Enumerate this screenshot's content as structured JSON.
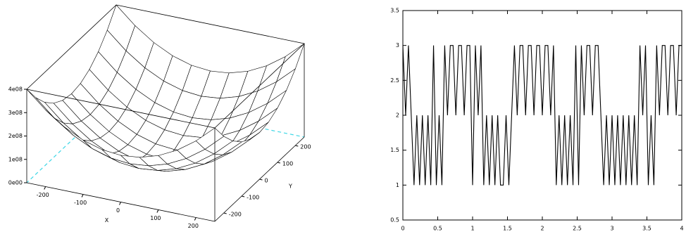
{
  "chart_data": [
    {
      "type": "surface",
      "xlabel": "X",
      "ylabel": "Y",
      "x": [
        -250,
        -200,
        -150,
        -100,
        -50,
        0,
        50,
        100,
        150,
        200,
        250
      ],
      "y": [
        -250,
        -200,
        -150,
        -100,
        -50,
        0,
        50,
        100,
        150,
        200,
        250
      ],
      "z": [
        [
          400000000.0,
          328000000.0,
          272000000.0,
          232000000.0,
          208000000.0,
          200000000.0,
          208000000.0,
          232000000.0,
          272000000.0,
          328000000.0,
          400000000.0
        ],
        [
          328000000.0,
          256000000.0,
          200000000.0,
          160000000.0,
          136000000.0,
          128000000.0,
          136000000.0,
          160000000.0,
          200000000.0,
          256000000.0,
          328000000.0
        ],
        [
          272000000.0,
          200000000.0,
          144000000.0,
          104000000.0,
          80000000.0,
          72000000.0,
          80000000.0,
          104000000.0,
          144000000.0,
          200000000.0,
          272000000.0
        ],
        [
          232000000.0,
          160000000.0,
          104000000.0,
          64000000.0,
          40000000.0,
          32000000.0,
          40000000.0,
          64000000.0,
          104000000.0,
          160000000.0,
          232000000.0
        ],
        [
          208000000.0,
          136000000.0,
          80000000.0,
          40000000.0,
          16000000.0,
          8000000.0,
          16000000.0,
          40000000.0,
          80000000.0,
          136000000.0,
          208000000.0
        ],
        [
          200000000.0,
          128000000.0,
          72000000.0,
          32000000.0,
          8000000.0,
          0,
          8000000.0,
          32000000.0,
          72000000.0,
          128000000.0,
          200000000.0
        ],
        [
          208000000.0,
          136000000.0,
          80000000.0,
          40000000.0,
          16000000.0,
          8000000.0,
          16000000.0,
          40000000.0,
          80000000.0,
          136000000.0,
          208000000.0
        ],
        [
          232000000.0,
          160000000.0,
          104000000.0,
          64000000.0,
          40000000.0,
          32000000.0,
          40000000.0,
          64000000.0,
          104000000.0,
          160000000.0,
          232000000.0
        ],
        [
          272000000.0,
          200000000.0,
          144000000.0,
          104000000.0,
          80000000.0,
          72000000.0,
          80000000.0,
          104000000.0,
          144000000.0,
          200000000.0,
          272000000.0
        ],
        [
          328000000.0,
          256000000.0,
          200000000.0,
          160000000.0,
          136000000.0,
          128000000.0,
          136000000.0,
          160000000.0,
          200000000.0,
          256000000.0,
          328000000.0
        ],
        [
          400000000.0,
          328000000.0,
          272000000.0,
          232000000.0,
          208000000.0,
          200000000.0,
          208000000.0,
          232000000.0,
          272000000.0,
          328000000.0,
          400000000.0
        ]
      ],
      "xlim": [
        -250,
        250
      ],
      "ylim": [
        -250,
        250
      ],
      "zlim": [
        0,
        400000000.0
      ],
      "xticks": [
        -200,
        -100,
        0,
        100,
        200
      ],
      "yticks": [
        -200,
        -100,
        0,
        100,
        200
      ],
      "zticks": [
        {
          "value": 0,
          "label": "0e00"
        },
        {
          "value": 100000000.0,
          "label": "1e08"
        },
        {
          "value": 200000000.0,
          "label": "2e08"
        },
        {
          "value": 300000000.0,
          "label": "3e08"
        },
        {
          "value": 400000000.0,
          "label": "4e08"
        }
      ],
      "color": "#000000"
    },
    {
      "type": "line",
      "color": "#000000",
      "x": [
        0,
        0.04,
        0.08,
        0.12,
        0.16,
        0.2,
        0.24,
        0.28,
        0.32,
        0.36,
        0.4,
        0.44,
        0.48,
        0.52,
        0.56,
        0.6,
        0.64,
        0.68,
        0.72,
        0.76,
        0.8,
        0.84,
        0.88,
        0.92,
        0.96,
        1,
        1.04,
        1.08,
        1.12,
        1.16,
        1.2,
        1.24,
        1.28,
        1.32,
        1.36,
        1.4,
        1.44,
        1.48,
        1.52,
        1.56,
        1.6,
        1.64,
        1.68,
        1.72,
        1.76,
        1.8,
        1.84,
        1.88,
        1.92,
        1.96,
        2,
        2.04,
        2.08,
        2.12,
        2.16,
        2.2,
        2.24,
        2.28,
        2.32,
        2.36,
        2.4,
        2.44,
        2.48,
        2.52,
        2.56,
        2.6,
        2.64,
        2.68,
        2.72,
        2.76,
        2.8,
        2.84,
        2.88,
        2.92,
        2.96,
        3,
        3.04,
        3.08,
        3.12,
        3.16,
        3.2,
        3.24,
        3.28,
        3.32,
        3.36,
        3.4,
        3.44,
        3.48,
        3.52,
        3.56,
        3.6,
        3.64,
        3.68,
        3.72,
        3.76,
        3.8,
        3.84,
        3.88,
        3.92,
        3.96,
        4
      ],
      "values": [
        3,
        2,
        3,
        2,
        1,
        2,
        1,
        2,
        1,
        2,
        1,
        3,
        1,
        2,
        1,
        3,
        2,
        3,
        3,
        2,
        3,
        3,
        2,
        3,
        3,
        1,
        3,
        2,
        3,
        1,
        2,
        1,
        2,
        1,
        2,
        1,
        1,
        2,
        1,
        2,
        3,
        2,
        3,
        3,
        2,
        3,
        3,
        2,
        3,
        3,
        2,
        3,
        3,
        2,
        3,
        1,
        2,
        1,
        2,
        1,
        2,
        1,
        3,
        1,
        3,
        2,
        3,
        3,
        2,
        3,
        3,
        2,
        1,
        2,
        1,
        2,
        1,
        2,
        1,
        2,
        1,
        2,
        1,
        2,
        1,
        3,
        2,
        3,
        1,
        2,
        1,
        3,
        2,
        3,
        3,
        2,
        3,
        3,
        2,
        3,
        3
      ],
      "xlim": [
        0,
        4
      ],
      "ylim": [
        0.5,
        3.5
      ],
      "xticks": [
        0,
        0.5,
        1,
        1.5,
        2,
        2.5,
        3,
        3.5,
        4
      ],
      "yticks": [
        0.5,
        1,
        1.5,
        2,
        2.5,
        3,
        3.5
      ]
    }
  ]
}
